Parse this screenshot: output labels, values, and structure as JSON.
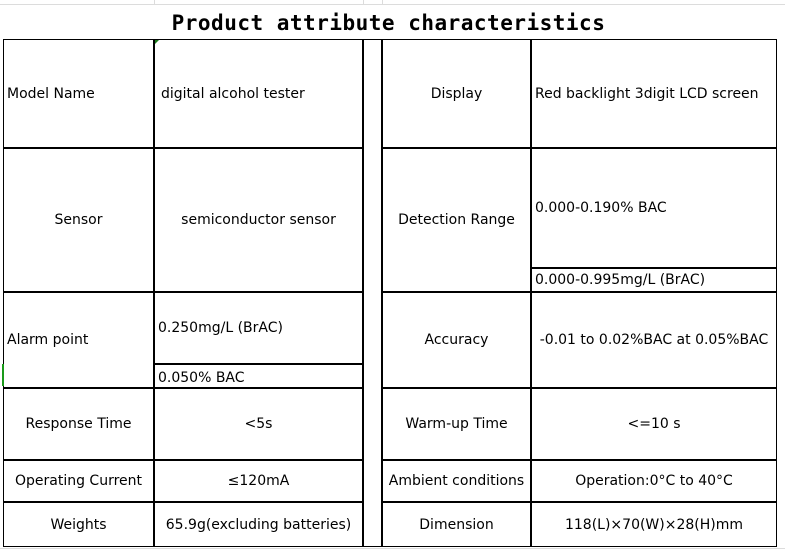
{
  "title": "Product attribute characteristics",
  "left": [
    {
      "label": "Model Name",
      "value": "digital alcohol tester"
    },
    {
      "label": "Sensor",
      "value": "semiconductor sensor"
    },
    {
      "label": "Alarm point",
      "values": [
        "0.250mg/L (BrAC)",
        "0.050% BAC"
      ]
    },
    {
      "label": "Response Time",
      "value": "<5s"
    },
    {
      "label": "Operating Current",
      "value": "≤120mA"
    },
    {
      "label": "Weights",
      "value": "65.9g(excluding batteries)"
    }
  ],
  "right": [
    {
      "label": "Display",
      "value": "Red backlight 3digit LCD screen"
    },
    {
      "label": "Detection Range",
      "values": [
        "0.000-0.190% BAC",
        "0.000-0.995mg/L (BrAC)"
      ]
    },
    {
      "label": "Accuracy",
      "value": "-0.01 to 0.02%BAC at 0.05%BAC"
    },
    {
      "label": "Warm-up Time",
      "value": "<=10 s"
    },
    {
      "label": "Ambient conditions",
      "value": "Operation:0°C to 40°C"
    },
    {
      "label": "Dimension",
      "value": "118(L)×70(W)×28(H)mm"
    }
  ]
}
